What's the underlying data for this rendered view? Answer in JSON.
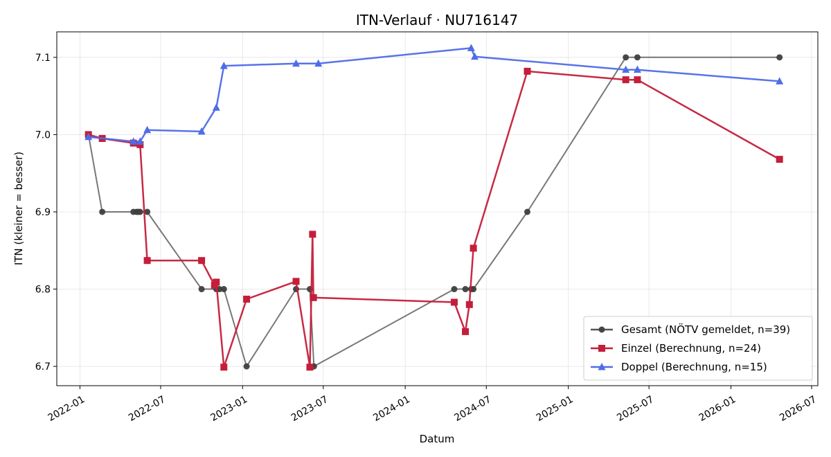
{
  "chart_data": {
    "type": "line",
    "title": "ITN-Verlauf · NU716147",
    "xlabel": "Datum",
    "ylabel": "ITN  (kleiner = besser)",
    "x_type": "date",
    "xlim": [
      "2021-11-10",
      "2026-07-15"
    ],
    "ylim": [
      6.675,
      7.133
    ],
    "x_ticks": [
      "2022-01",
      "2022-07",
      "2023-01",
      "2023-07",
      "2024-01",
      "2024-07",
      "2025-01",
      "2025-07",
      "2026-01",
      "2026-07"
    ],
    "y_ticks": [
      6.7,
      6.8,
      6.9,
      7.0,
      7.1
    ],
    "y_tick_labels": [
      "6.7",
      "6.8",
      "6.9",
      "7.0",
      "7.1"
    ],
    "grid": true,
    "legend_position": "bottom-right",
    "series": [
      {
        "name": "Gesamt (NÖTV gemeldet, n=39)",
        "color": "#555555",
        "marker": "circle",
        "points": [
          [
            "2022-01-20",
            7.0
          ],
          [
            "2022-02-20",
            6.9
          ],
          [
            "2022-05-01",
            6.9
          ],
          [
            "2022-05-08",
            6.9
          ],
          [
            "2022-05-12",
            6.9
          ],
          [
            "2022-05-16",
            6.9
          ],
          [
            "2022-06-01",
            6.9
          ],
          [
            "2022-10-01",
            6.8
          ],
          [
            "2022-11-03",
            6.8
          ],
          [
            "2022-11-10",
            6.8
          ],
          [
            "2022-11-20",
            6.8
          ],
          [
            "2023-01-10",
            6.7
          ],
          [
            "2023-05-01",
            6.8
          ],
          [
            "2023-06-01",
            6.8
          ],
          [
            "2023-06-10",
            6.7
          ],
          [
            "2024-04-20",
            6.8
          ],
          [
            "2024-05-15",
            6.8
          ],
          [
            "2024-05-28",
            6.8
          ],
          [
            "2024-06-02",
            6.8
          ],
          [
            "2024-10-01",
            6.9
          ],
          [
            "2025-05-10",
            7.1
          ],
          [
            "2025-06-05",
            7.1
          ],
          [
            "2026-04-20",
            7.1
          ]
        ]
      },
      {
        "name": "Einzel (Berechnung, n=24)",
        "color": "#c41e3a",
        "marker": "square",
        "points": [
          [
            "2022-01-20",
            7.0
          ],
          [
            "2022-02-20",
            6.995
          ],
          [
            "2022-05-01",
            6.989
          ],
          [
            "2022-05-16",
            6.987
          ],
          [
            "2022-06-01",
            6.837
          ],
          [
            "2022-10-01",
            6.837
          ],
          [
            "2022-10-30",
            6.805
          ],
          [
            "2022-11-03",
            6.809
          ],
          [
            "2022-11-20",
            6.699
          ],
          [
            "2023-01-10",
            6.787
          ],
          [
            "2023-05-01",
            6.81
          ],
          [
            "2023-06-01",
            6.699
          ],
          [
            "2023-06-07",
            6.871
          ],
          [
            "2023-06-09",
            6.789
          ],
          [
            "2024-04-20",
            6.783
          ],
          [
            "2024-05-15",
            6.745
          ],
          [
            "2024-05-24",
            6.78
          ],
          [
            "2024-06-02",
            6.853
          ],
          [
            "2024-10-01",
            7.082
          ],
          [
            "2025-05-10",
            7.071
          ],
          [
            "2025-06-05",
            7.071
          ],
          [
            "2026-04-20",
            6.968
          ]
        ]
      },
      {
        "name": "Doppel (Berechnung, n=15)",
        "color": "#4f6ce8",
        "marker": "triangle",
        "points": [
          [
            "2022-01-20",
            6.997
          ],
          [
            "2022-05-01",
            6.991
          ],
          [
            "2022-05-16",
            6.991
          ],
          [
            "2022-06-01",
            7.006
          ],
          [
            "2022-10-01",
            7.004
          ],
          [
            "2022-11-03",
            7.035
          ],
          [
            "2022-11-20",
            7.089
          ],
          [
            "2023-05-01",
            7.092
          ],
          [
            "2023-06-20",
            7.092
          ],
          [
            "2024-05-28",
            7.112
          ],
          [
            "2024-06-05",
            7.101
          ],
          [
            "2025-05-10",
            7.084
          ],
          [
            "2025-06-05",
            7.084
          ],
          [
            "2026-04-20",
            7.069
          ]
        ]
      }
    ]
  }
}
